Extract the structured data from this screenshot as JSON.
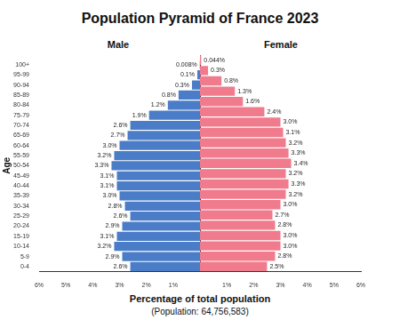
{
  "chart_data": {
    "type": "bar",
    "orientation": "horizontal",
    "title": "Population Pyramid of France 2023",
    "subtitle": "(Population: 64,756,583)",
    "xlabel": "Percentage of total population",
    "ylabel": "Age",
    "categories": [
      "100+",
      "95-99",
      "90-94",
      "85-89",
      "80-84",
      "75-79",
      "70-74",
      "65-69",
      "60-64",
      "55-59",
      "50-54",
      "45-49",
      "40-44",
      "35-39",
      "30-34",
      "25-29",
      "20-24",
      "15-19",
      "10-14",
      "5-9",
      "0-4"
    ],
    "series": [
      {
        "name": "Male",
        "color": "#4a7cc7",
        "values": [
          0.008,
          0.1,
          0.3,
          0.8,
          1.2,
          1.9,
          2.6,
          2.7,
          3.0,
          3.2,
          3.3,
          3.1,
          3.1,
          3.0,
          2.8,
          2.6,
          2.9,
          3.1,
          3.2,
          2.9,
          2.6
        ],
        "value_labels": [
          "0.008%",
          "0.1%",
          "0.3%",
          "0.8%",
          "1.2%",
          "1.9%",
          "2.6%",
          "2.7%",
          "3.0%",
          "3.2%",
          "3.3%",
          "3.1%",
          "3.1%",
          "3.0%",
          "2.8%",
          "2.6%",
          "2.9%",
          "3.1%",
          "3.2%",
          "2.9%",
          "2.6%"
        ]
      },
      {
        "name": "Female",
        "color": "#f07b8c",
        "values": [
          0.044,
          0.3,
          0.8,
          1.3,
          1.6,
          2.4,
          3.0,
          3.1,
          3.2,
          3.3,
          3.4,
          3.2,
          3.3,
          3.2,
          3.0,
          2.7,
          2.8,
          3.0,
          3.0,
          2.8,
          2.5
        ],
        "value_labels": [
          "0.044%",
          "0.3%",
          "0.8%",
          "1.3%",
          "1.6%",
          "2.4%",
          "3.0%",
          "3.1%",
          "3.2%",
          "3.3%",
          "3.4%",
          "3.2%",
          "3.3%",
          "3.2%",
          "3.0%",
          "2.7%",
          "2.8%",
          "3.0%",
          "3.0%",
          "2.8%",
          "2.5%"
        ]
      }
    ],
    "xlim": [
      0,
      6
    ],
    "xticks": [
      {
        "value": 1,
        "label": "1%"
      },
      {
        "value": 2,
        "label": "2%"
      },
      {
        "value": 3,
        "label": "3%"
      },
      {
        "value": 4,
        "label": "4%"
      },
      {
        "value": 5,
        "label": "5%"
      },
      {
        "value": 6,
        "label": "6%"
      }
    ],
    "grid": false,
    "data_labels": true
  }
}
